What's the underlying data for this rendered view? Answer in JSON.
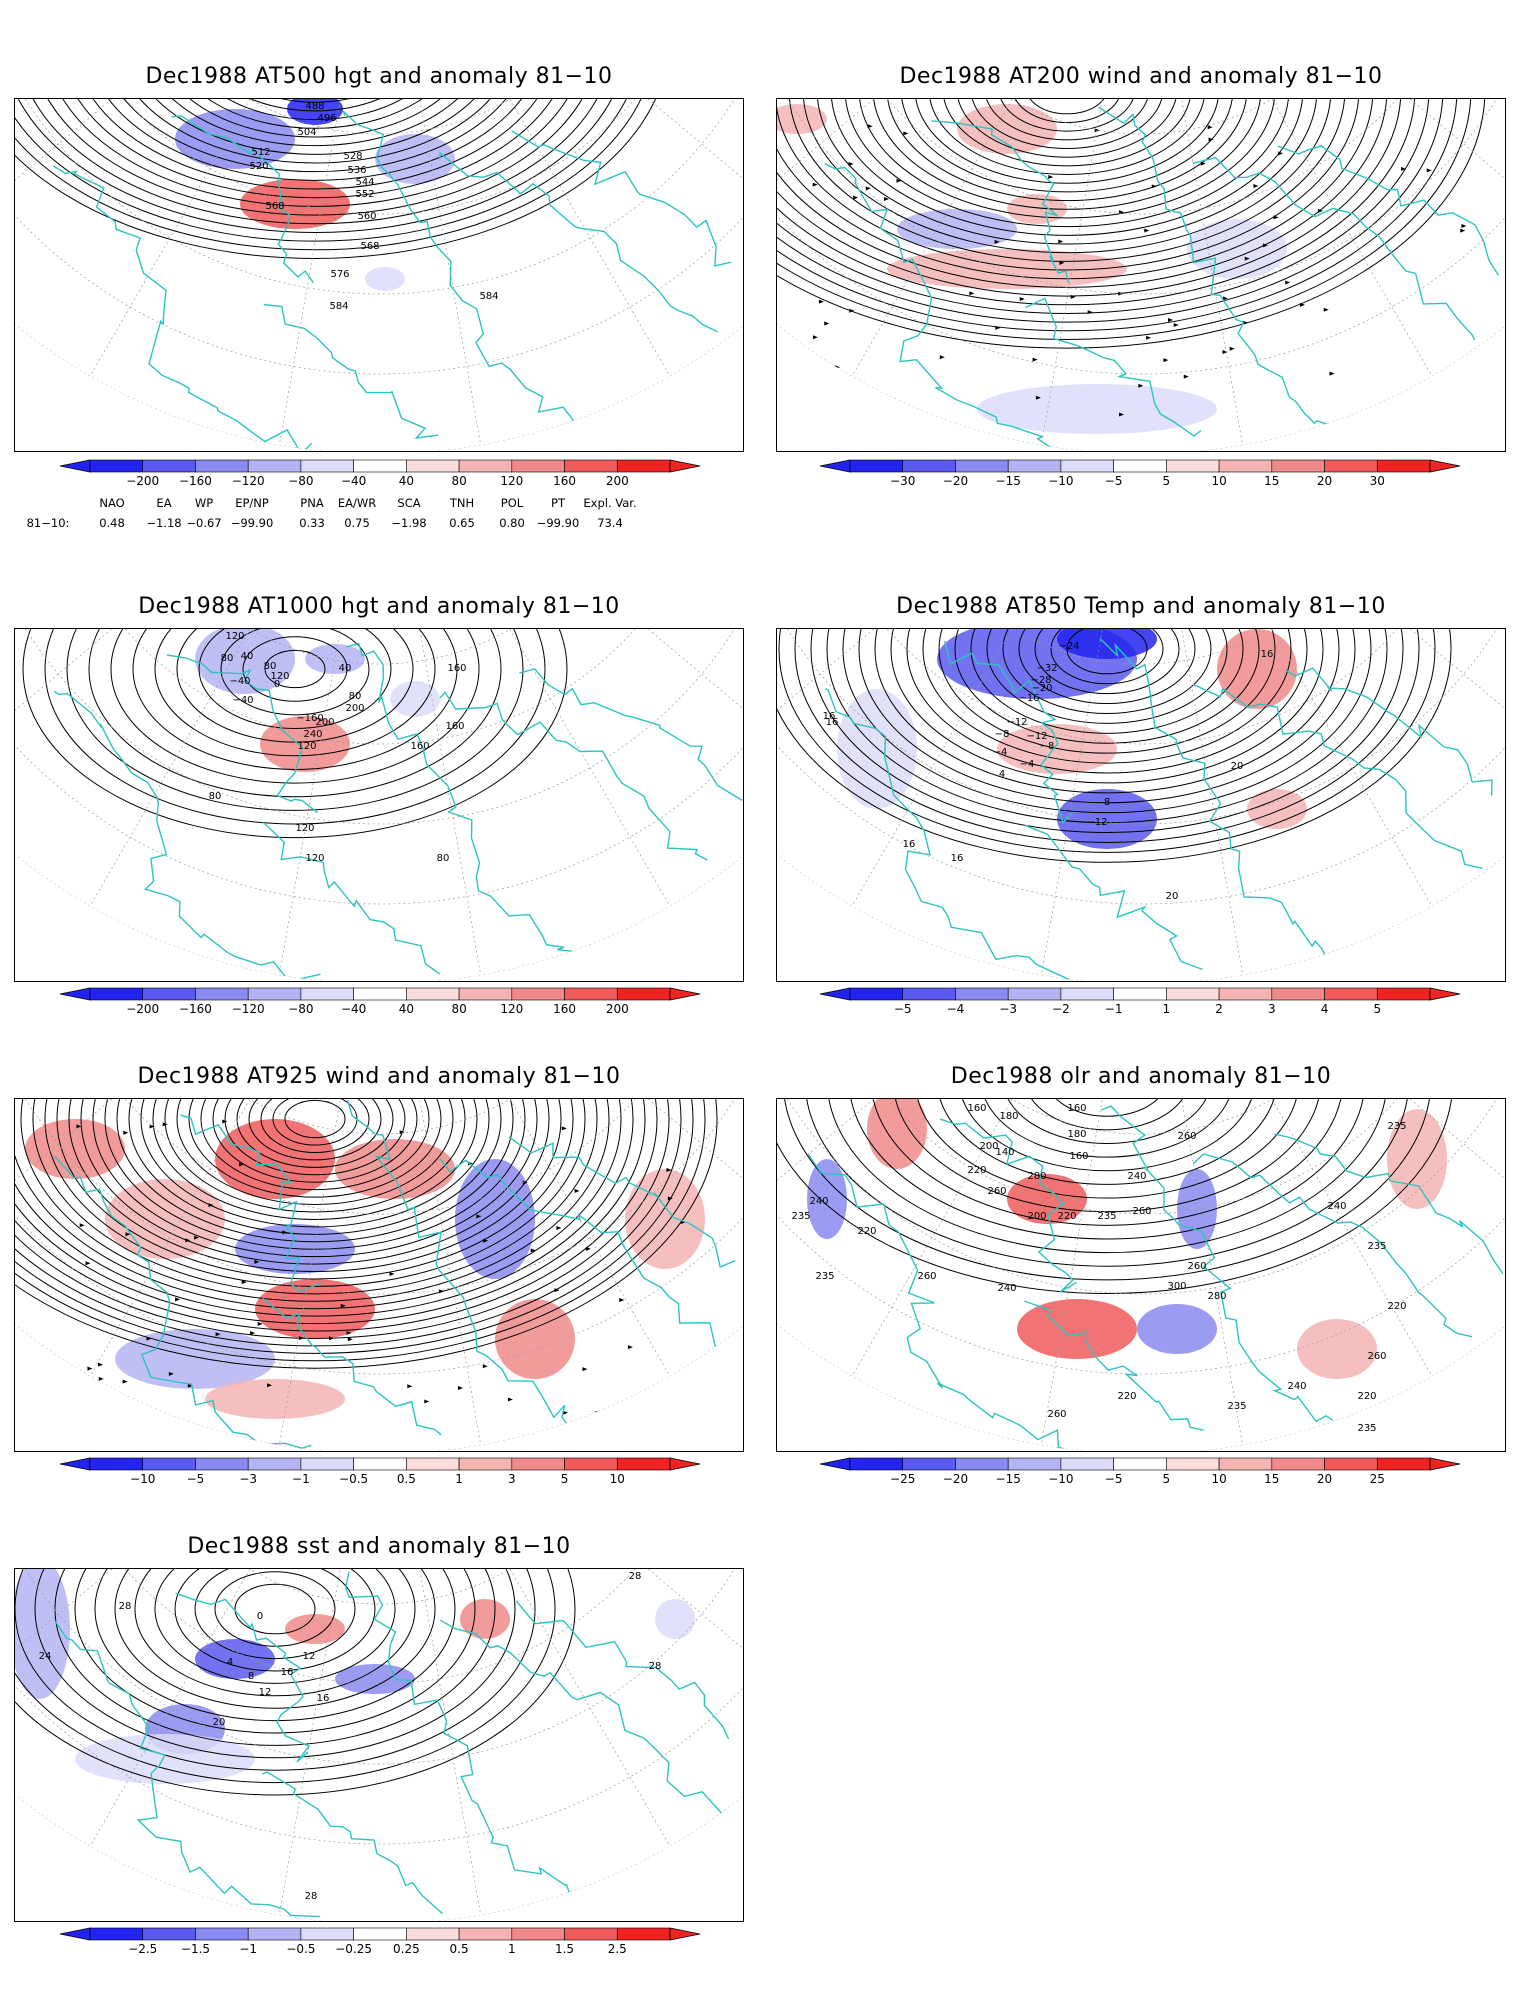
{
  "panels": [
    {
      "id": "p500",
      "title": "Dec1988 AT500 hgt and anomaly 81−10",
      "contour_labels": [
        "488",
        "496",
        "504",
        "512",
        "520",
        "528",
        "536",
        "544",
        "552",
        "560",
        "568",
        "568",
        "576",
        "584",
        "584"
      ],
      "colorbar": {
        "ticks": [
          "−200",
          "−160",
          "−120",
          "−80",
          "−40",
          "40",
          "80",
          "120",
          "160",
          "200"
        ]
      }
    },
    {
      "id": "p200",
      "title": "Dec1988 AT200 wind and anomaly 81−10",
      "contour_labels": [],
      "colorbar": {
        "ticks": [
          "−30",
          "−20",
          "−15",
          "−10",
          "−5",
          "5",
          "10",
          "15",
          "20",
          "30"
        ]
      }
    },
    {
      "id": "p1000",
      "title": "Dec1988 AT1000 hgt and anomaly 81−10",
      "contour_labels": [
        "120",
        "80",
        "40",
        "80",
        "120",
        "−40",
        "0",
        "−40",
        "40",
        "80",
        "200",
        "−160",
        "200",
        "240",
        "120",
        "160",
        "160",
        "160",
        "80",
        "120",
        "80",
        "120"
      ],
      "colorbar": {
        "ticks": [
          "−200",
          "−160",
          "−120",
          "−80",
          "−40",
          "40",
          "80",
          "120",
          "160",
          "200"
        ]
      }
    },
    {
      "id": "p850",
      "title": "Dec1988 AT850 Temp and anomaly 81−10",
      "contour_labels": [
        "−24",
        "−32",
        "−28",
        "−20",
        "−16",
        "−12",
        "−8",
        "−4",
        "−12",
        "−8",
        "−4",
        "16",
        "16",
        "4",
        "8",
        "−12",
        "16",
        "16",
        "20",
        "20",
        "16"
      ],
      "colorbar": {
        "ticks": [
          "−5",
          "−4",
          "−3",
          "−2",
          "−1",
          "1",
          "2",
          "3",
          "4",
          "5"
        ]
      }
    },
    {
      "id": "p925",
      "title": "Dec1988 AT925 wind and anomaly 81−10",
      "contour_labels": [],
      "colorbar": {
        "ticks": [
          "−10",
          "−5",
          "−3",
          "−1",
          "−0.5",
          "0.5",
          "1",
          "3",
          "5",
          "10"
        ]
      }
    },
    {
      "id": "polr",
      "title": "Dec1988 olr and anomaly 81−10",
      "contour_labels": [
        "160",
        "160",
        "180",
        "180",
        "140",
        "160",
        "200",
        "235",
        "260",
        "220",
        "260",
        "280",
        "240",
        "235",
        "200",
        "220",
        "260",
        "240",
        "235",
        "220",
        "235",
        "260",
        "240",
        "300",
        "280",
        "260",
        "240",
        "235",
        "220",
        "260",
        "220",
        "235",
        "260",
        "220",
        "235",
        "240"
      ],
      "colorbar": {
        "ticks": [
          "−25",
          "−20",
          "−15",
          "−10",
          "−5",
          "5",
          "10",
          "15",
          "20",
          "25"
        ]
      }
    },
    {
      "id": "psst",
      "title": "Dec1988 sst and anomaly 81−10",
      "contour_labels": [
        "28",
        "24",
        "0",
        "4",
        "8",
        "12",
        "16",
        "20",
        "16",
        "12",
        "28",
        "28",
        "28"
      ],
      "colorbar": {
        "ticks": [
          "−2.5",
          "−1.5",
          "−1",
          "−0.5",
          "−0.25",
          "0.25",
          "0.5",
          "1",
          "1.5",
          "2.5"
        ]
      }
    }
  ],
  "teleconnection_indices": {
    "headers": [
      "NAO",
      "EA",
      "WP",
      "EP/NP",
      "PNA",
      "EA/WR",
      "SCA",
      "TNH",
      "POL",
      "PT",
      "Expl. Var."
    ],
    "row_label": "81−10:",
    "values": [
      "0.48",
      "−1.18",
      "−0.67",
      "−99.90",
      "0.33",
      "0.75",
      "−1.98",
      "0.65",
      "0.80",
      "−99.90",
      "73.4"
    ]
  },
  "colors": {
    "continent_outline": "#2cc4c0",
    "blue_scale": [
      "#2323f0",
      "#5a5af0",
      "#8a8af0",
      "#b4b4f4",
      "#dcdcfa"
    ],
    "red_scale": [
      "#fadcdc",
      "#f4b4b4",
      "#f08a8a",
      "#f05a5a",
      "#f02323"
    ],
    "contour": "#000000",
    "grid": "#9a9a9a"
  }
}
